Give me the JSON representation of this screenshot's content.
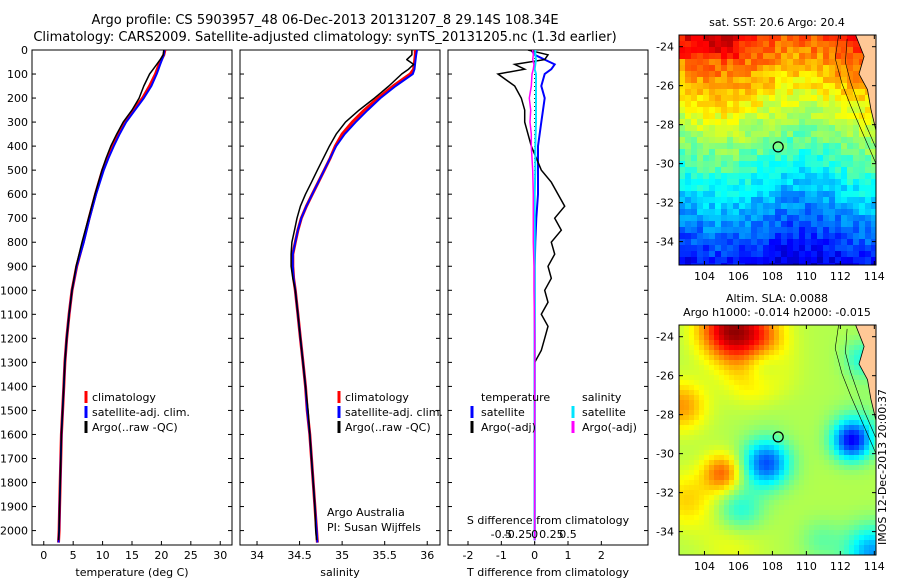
{
  "header": {
    "line1": "Argo profile: CS 5903957_48 06-Dec-2013 20131207_8 29.14S 108.34E",
    "line2": "Climatology: CARS2009. Satellite-adjusted climatology: synTS_20131205.nc (1.3d earlier)"
  },
  "credit": "IMOS 12-Dec-2013 20:00:37",
  "colors": {
    "climatology": "#ff0000",
    "satellite": "#0000ff",
    "argo": "#000000",
    "sat_sal": "#00e5ff",
    "argo_adj_sal": "#ff00ff"
  },
  "depth_axis": {
    "ticks": [
      0,
      100,
      200,
      300,
      400,
      500,
      600,
      700,
      800,
      900,
      1000,
      1100,
      1200,
      1300,
      1400,
      1500,
      1600,
      1700,
      1800,
      1900,
      2000
    ],
    "range": [
      0,
      2060
    ]
  },
  "chart_data": [
    {
      "type": "line",
      "xlabel": "temperature (deg C)",
      "xticks": [
        0,
        5,
        10,
        15,
        20,
        25,
        30
      ],
      "xlim": [
        -2,
        32
      ],
      "legend": [
        "climatology",
        "satellite-adj. clim.",
        "Argo(..raw -QC)"
      ],
      "series": [
        {
          "name": "climatology",
          "y": [
            0,
            20,
            40,
            60,
            80,
            100,
            150,
            200,
            250,
            300,
            350,
            400,
            450,
            500,
            600,
            700,
            800,
            900,
            1000,
            1100,
            1200,
            1300,
            1400,
            1500,
            1600,
            1700,
            1800,
            1900,
            2000,
            2050
          ],
          "x": [
            20.6,
            20.4,
            20.0,
            19.6,
            19.3,
            19.0,
            18.0,
            16.8,
            15.2,
            13.8,
            12.7,
            11.7,
            10.8,
            10.0,
            8.8,
            7.7,
            6.7,
            5.6,
            4.8,
            4.3,
            3.9,
            3.6,
            3.4,
            3.2,
            3.0,
            2.9,
            2.8,
            2.7,
            2.6,
            2.5
          ]
        },
        {
          "name": "satellite-adj. clim.",
          "y": [
            0,
            20,
            40,
            60,
            80,
            100,
            150,
            200,
            250,
            300,
            350,
            400,
            450,
            500,
            600,
            700,
            800,
            900,
            1000,
            1100,
            1200,
            1300,
            1400,
            1500,
            1600,
            1700,
            1800,
            1900,
            2000,
            2050
          ],
          "x": [
            20.5,
            20.4,
            20.1,
            19.8,
            19.5,
            19.2,
            18.3,
            17.0,
            15.5,
            14.0,
            12.9,
            11.9,
            11.0,
            10.2,
            8.9,
            7.8,
            6.8,
            5.6,
            4.8,
            4.3,
            3.9,
            3.6,
            3.4,
            3.2,
            3.0,
            2.9,
            2.8,
            2.7,
            2.6,
            2.5
          ]
        },
        {
          "name": "Argo(..raw -QC)",
          "y": [
            0,
            20,
            40,
            60,
            80,
            100,
            150,
            200,
            250,
            300,
            350,
            400,
            450,
            500,
            600,
            700,
            800,
            900,
            1000,
            1100,
            1200,
            1300,
            1400,
            1500,
            1600,
            1700,
            1800,
            1900,
            2000,
            2040
          ],
          "x": [
            20.4,
            20.3,
            19.8,
            19.2,
            18.6,
            18.0,
            17.0,
            16.2,
            15.0,
            13.5,
            12.4,
            11.4,
            10.6,
            9.9,
            8.7,
            7.6,
            6.5,
            5.5,
            4.8,
            4.3,
            3.9,
            3.6,
            3.4,
            3.2,
            3.0,
            2.9,
            2.8,
            2.7,
            2.6,
            2.5
          ]
        }
      ]
    },
    {
      "type": "line",
      "xlabel": "salinity",
      "xticks": [
        34,
        34.5,
        35,
        35.5,
        36
      ],
      "xlim": [
        33.8,
        36.15
      ],
      "legend": [
        "climatology",
        "satellite-adj. clim.",
        "Argo(..raw -QC)"
      ],
      "note": [
        "Argo Australia",
        "PI: Susan Wijffels"
      ],
      "series": [
        {
          "name": "climatology",
          "y": [
            0,
            20,
            50,
            80,
            100,
            150,
            200,
            250,
            300,
            350,
            400,
            450,
            500,
            550,
            600,
            650,
            700,
            750,
            800,
            850,
            900,
            950,
            1000,
            1100,
            1200,
            1300,
            1400,
            1500,
            1600,
            1700,
            1800,
            1900,
            2000,
            2050
          ],
          "x": [
            35.86,
            35.86,
            35.85,
            35.84,
            35.8,
            35.6,
            35.42,
            35.26,
            35.12,
            35.0,
            34.92,
            34.86,
            34.79,
            34.72,
            34.65,
            34.58,
            34.52,
            34.48,
            34.45,
            34.42,
            34.42,
            34.43,
            34.45,
            34.48,
            34.51,
            34.54,
            34.57,
            34.59,
            34.62,
            34.64,
            34.66,
            34.68,
            34.7,
            34.71
          ]
        },
        {
          "name": "satellite-adj. clim.",
          "y": [
            0,
            20,
            50,
            80,
            100,
            150,
            200,
            250,
            300,
            350,
            400,
            450,
            500,
            550,
            600,
            650,
            700,
            750,
            800,
            850,
            900,
            950,
            1000,
            1100,
            1200,
            1300,
            1400,
            1500,
            1600,
            1700,
            1800,
            1900,
            2000,
            2050
          ],
          "x": [
            35.88,
            35.87,
            35.86,
            35.85,
            35.83,
            35.63,
            35.45,
            35.3,
            35.16,
            35.03,
            34.93,
            34.86,
            34.79,
            34.72,
            34.65,
            34.58,
            34.52,
            34.48,
            34.45,
            34.42,
            34.42,
            34.43,
            34.45,
            34.48,
            34.51,
            34.54,
            34.57,
            34.59,
            34.62,
            34.64,
            34.66,
            34.68,
            34.7,
            34.71
          ]
        },
        {
          "name": "Argo(..raw -QC)",
          "y": [
            0,
            20,
            40,
            60,
            80,
            100,
            150,
            200,
            250,
            300,
            350,
            400,
            450,
            500,
            550,
            600,
            650,
            700,
            750,
            800,
            850,
            900,
            950,
            1000,
            1100,
            1200,
            1300,
            1400,
            1500,
            1600,
            1700,
            1800,
            1900,
            2000,
            2040
          ],
          "x": [
            35.82,
            35.82,
            35.76,
            35.84,
            35.78,
            35.7,
            35.55,
            35.38,
            35.2,
            35.04,
            34.93,
            34.85,
            34.78,
            34.71,
            34.64,
            34.57,
            34.51,
            34.47,
            34.44,
            34.41,
            34.4,
            34.4,
            34.42,
            34.45,
            34.48,
            34.51,
            34.54,
            34.57,
            34.6,
            34.62,
            34.64,
            34.66,
            34.68,
            34.69,
            34.7
          ]
        }
      ]
    },
    {
      "type": "line",
      "xlabel": "T difference from climatology",
      "xlabel_top": "S difference from climatology",
      "xticks": [
        -2,
        -1,
        0,
        1,
        2
      ],
      "xticks_top": [
        -0.5,
        -0.25,
        0,
        0.25,
        0.5
      ],
      "xlim": [
        -2.6,
        3.4
      ],
      "legend_left_title": "temperature",
      "legend_left": [
        "satellite",
        "Argo(-adj)"
      ],
      "legend_right_title": "salinity",
      "legend_right": [
        "satellite",
        "Argo(-adj)"
      ],
      "series": [
        {
          "name": "temperature satellite",
          "y": [
            0,
            20,
            40,
            60,
            80,
            100,
            150,
            200,
            300,
            400,
            500,
            600,
            700,
            800,
            900,
            1000,
            1200,
            1400,
            1600,
            1800,
            2000,
            2040
          ],
          "x": [
            -0.1,
            0.0,
            0.3,
            0.6,
            0.5,
            0.3,
            0.2,
            0.3,
            0.2,
            0.1,
            0.1,
            0.1,
            0.05,
            0.02,
            0.0,
            0.0,
            0.0,
            0.0,
            0.0,
            0.0,
            0.0,
            0.0
          ]
        },
        {
          "name": "temperature Argo(-adj)",
          "y": [
            0,
            20,
            40,
            60,
            80,
            100,
            150,
            200,
            250,
            300,
            400,
            500,
            550,
            600,
            650,
            700,
            750,
            800,
            850,
            900,
            950,
            1000,
            1050,
            1100,
            1150,
            1200,
            1250,
            1300,
            1400,
            1600,
            1800,
            2000,
            2040
          ],
          "x": [
            -0.2,
            0.4,
            0.3,
            -0.6,
            -0.3,
            -1.1,
            -0.6,
            -0.4,
            -0.3,
            -0.3,
            -0.1,
            0.2,
            0.5,
            0.7,
            0.9,
            0.6,
            0.8,
            0.5,
            0.6,
            0.4,
            0.5,
            0.3,
            0.4,
            0.2,
            0.4,
            0.3,
            0.2,
            0.0,
            0.0,
            0.0,
            0.0,
            0.0,
            0.0
          ]
        },
        {
          "name": "salinity satellite",
          "y": [
            0,
            20,
            40,
            60,
            80,
            100,
            150,
            200,
            300,
            400,
            500,
            600,
            700,
            800,
            900,
            1000,
            1200,
            1400,
            1600,
            1800,
            2000,
            2040
          ],
          "x": [
            0.01,
            0.01,
            0.02,
            0.01,
            0.0,
            0.02,
            0.02,
            0.02,
            0.02,
            0.01,
            0.01,
            0.0,
            0.0,
            0.0,
            0.0,
            0.0,
            0.0,
            0.0,
            0.0,
            0.0,
            0.0,
            0.0
          ]
        },
        {
          "name": "salinity Argo(-adj)",
          "y": [
            0,
            20,
            40,
            60,
            80,
            100,
            150,
            200,
            250,
            300,
            350,
            400,
            500,
            600,
            700,
            800,
            900,
            1000,
            1200,
            1400,
            1600,
            1800,
            2000,
            2040
          ],
          "x": [
            -0.03,
            -0.02,
            -0.03,
            -0.01,
            -0.02,
            -0.04,
            -0.05,
            -0.08,
            -0.06,
            -0.07,
            -0.05,
            -0.05,
            -0.03,
            -0.02,
            -0.02,
            -0.02,
            -0.01,
            -0.01,
            0.0,
            0.0,
            0.0,
            0.0,
            0.0,
            0.0
          ]
        }
      ]
    },
    {
      "type": "heatmap",
      "title": "sat. SST: 20.6  Argo: 20.4",
      "xticks": [
        104,
        106,
        108,
        110,
        112,
        114
      ],
      "yticks": [
        -24,
        -26,
        -28,
        -30,
        -32,
        -34
      ],
      "xlim": [
        102.5,
        114.1
      ],
      "ylim": [
        -35.2,
        -23.4
      ],
      "marker": {
        "lon": 108.34,
        "lat": -29.14
      }
    },
    {
      "type": "heatmap",
      "title_line1": "Altim. SLA: 0.0088",
      "title_line2": "Argo h1000: -0.014 h2000: -0.015",
      "xticks": [
        104,
        106,
        108,
        110,
        112,
        114
      ],
      "yticks": [
        -24,
        -26,
        -28,
        -30,
        -32,
        -34
      ],
      "xlim": [
        102.5,
        114.1
      ],
      "ylim": [
        -35.2,
        -23.4
      ],
      "marker": {
        "lon": 108.34,
        "lat": -29.14
      }
    }
  ]
}
